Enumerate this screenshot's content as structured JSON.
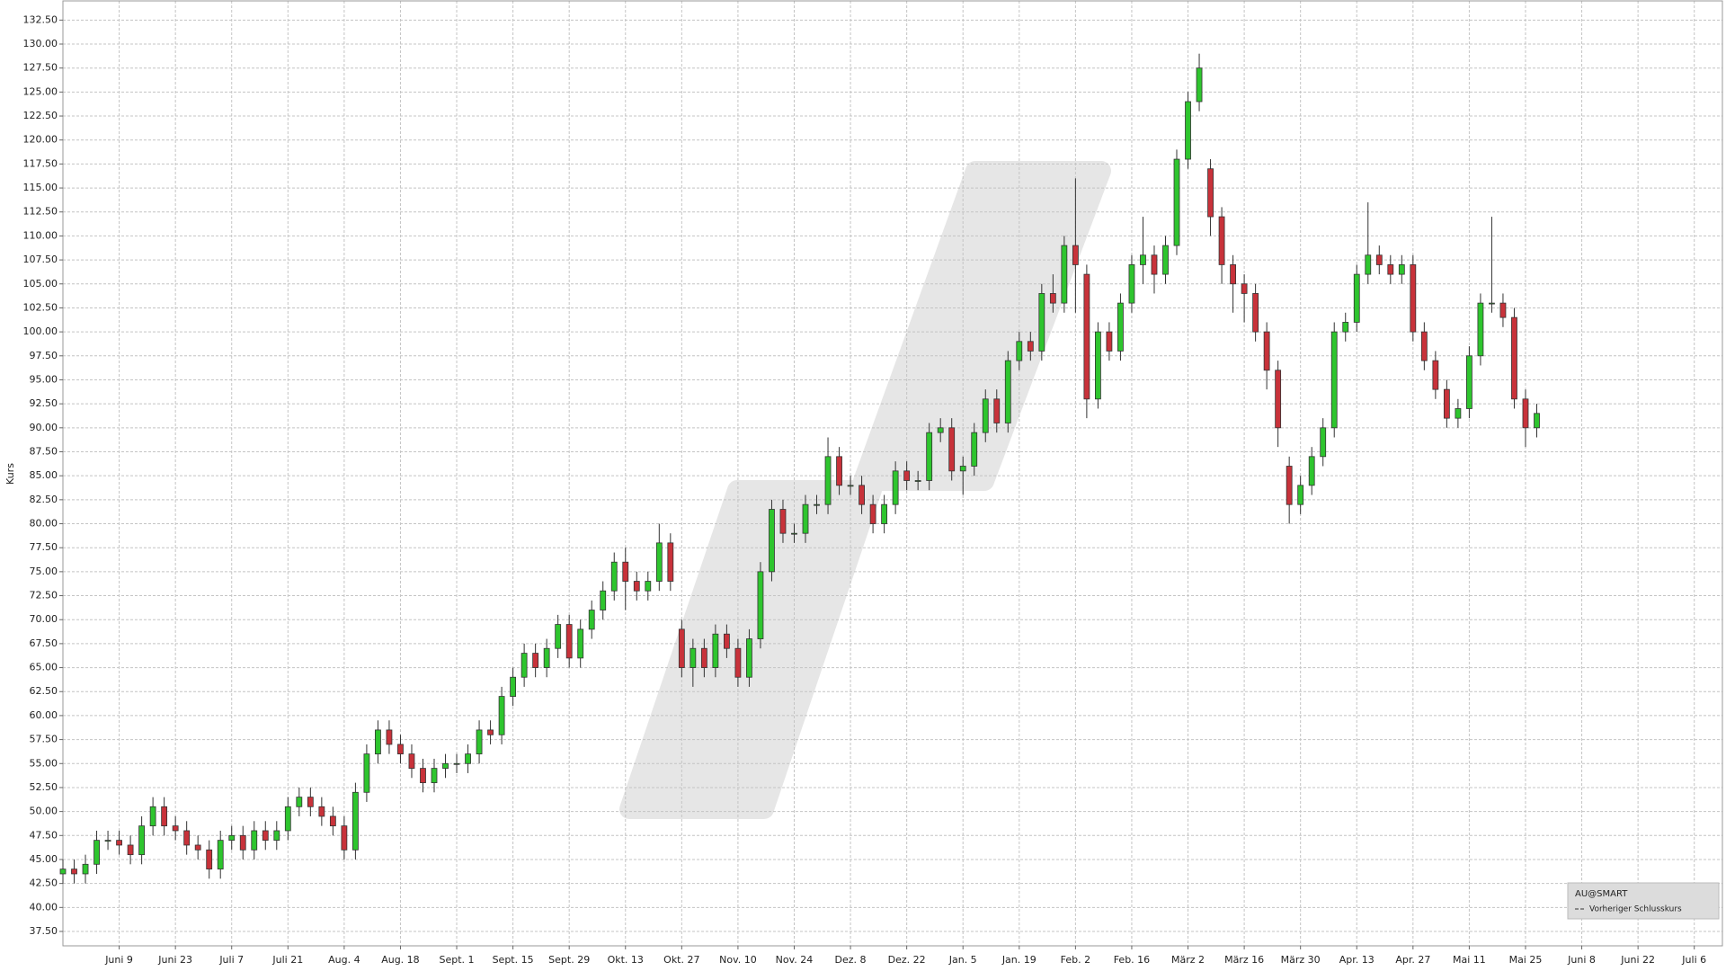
{
  "chart_data": {
    "type": "candlestick",
    "ylabel": "Kurs",
    "up_color": "#2ec52e",
    "down_color": "#c8323a",
    "grid": true,
    "legend": {
      "symbol": "AU@SMART",
      "items": [
        "Vorheriger Schlusskurs"
      ],
      "position": "lower right"
    },
    "xlim": [
      0,
      295
    ],
    "ylim": [
      36,
      134.5
    ],
    "xticks": [
      {
        "value": 10,
        "label": "Juni 9"
      },
      {
        "value": 20,
        "label": "Juni 23"
      },
      {
        "value": 30,
        "label": "Juli 7"
      },
      {
        "value": 40,
        "label": "Juli 21"
      },
      {
        "value": 50,
        "label": "Aug. 4"
      },
      {
        "value": 60,
        "label": "Aug. 18"
      },
      {
        "value": 70,
        "label": "Sept. 1"
      },
      {
        "value": 80,
        "label": "Sept. 15"
      },
      {
        "value": 90,
        "label": "Sept. 29"
      },
      {
        "value": 100,
        "label": "Okt. 13"
      },
      {
        "value": 110,
        "label": "Okt. 27"
      },
      {
        "value": 120,
        "label": "Nov. 10"
      },
      {
        "value": 130,
        "label": "Nov. 24"
      },
      {
        "value": 140,
        "label": "Dez. 8"
      },
      {
        "value": 150,
        "label": "Dez. 22"
      },
      {
        "value": 160,
        "label": "Jan. 5"
      },
      {
        "value": 170,
        "label": "Jan. 19"
      },
      {
        "value": 180,
        "label": "Feb. 2"
      },
      {
        "value": 190,
        "label": "Feb. 16"
      },
      {
        "value": 200,
        "label": "März 2"
      },
      {
        "value": 210,
        "label": "März 16"
      },
      {
        "value": 220,
        "label": "März 30"
      },
      {
        "value": 230,
        "label": "Apr. 13"
      },
      {
        "value": 240,
        "label": "Apr. 27"
      },
      {
        "value": 250,
        "label": "Mai 11"
      },
      {
        "value": 260,
        "label": "Mai 25"
      },
      {
        "value": 270,
        "label": "Juni 8"
      },
      {
        "value": 280,
        "label": "Juni 22"
      },
      {
        "value": 290,
        "label": "Juli 6"
      }
    ],
    "yticks": [
      {
        "value": 37.5,
        "label": "37.50"
      },
      {
        "value": 40,
        "label": "40.00"
      },
      {
        "value": 42.5,
        "label": "42.50"
      },
      {
        "value": 45,
        "label": "45.00"
      },
      {
        "value": 47.5,
        "label": "47.50"
      },
      {
        "value": 50,
        "label": "50.00"
      },
      {
        "value": 52.5,
        "label": "52.50"
      },
      {
        "value": 55,
        "label": "55.00"
      },
      {
        "value": 57.5,
        "label": "57.50"
      },
      {
        "value": 60,
        "label": "60.00"
      },
      {
        "value": 62.5,
        "label": "62.50"
      },
      {
        "value": 65,
        "label": "65.00"
      },
      {
        "value": 67.5,
        "label": "67.50"
      },
      {
        "value": 70,
        "label": "70.00"
      },
      {
        "value": 72.5,
        "label": "72.50"
      },
      {
        "value": 75,
        "label": "75.00"
      },
      {
        "value": 77.5,
        "label": "77.50"
      },
      {
        "value": 80,
        "label": "80.00"
      },
      {
        "value": 82.5,
        "label": "82.50"
      },
      {
        "value": 85,
        "label": "85.00"
      },
      {
        "value": 87.5,
        "label": "87.50"
      },
      {
        "value": 90,
        "label": "90.00"
      },
      {
        "value": 92.5,
        "label": "92.50"
      },
      {
        "value": 95,
        "label": "95.00"
      },
      {
        "value": 97.5,
        "label": "97.50"
      },
      {
        "value": 100,
        "label": "100.00"
      },
      {
        "value": 102.5,
        "label": "102.50"
      },
      {
        "value": 105,
        "label": "105.00"
      },
      {
        "value": 107.5,
        "label": "107.50"
      },
      {
        "value": 110,
        "label": "110.00"
      },
      {
        "value": 112.5,
        "label": "112.50"
      },
      {
        "value": 115,
        "label": "115.00"
      },
      {
        "value": 117.5,
        "label": "117.50"
      },
      {
        "value": 120,
        "label": "120.00"
      },
      {
        "value": 122.5,
        "label": "122.50"
      },
      {
        "value": 125,
        "label": "125.00"
      },
      {
        "value": 127.5,
        "label": "127.50"
      },
      {
        "value": 130,
        "label": "130.00"
      },
      {
        "value": 132.5,
        "label": "132.50"
      }
    ],
    "x": [
      0,
      2,
      4,
      6,
      8,
      10,
      12,
      14,
      16,
      18,
      20,
      22,
      24,
      26,
      28,
      30,
      32,
      34,
      36,
      38,
      40,
      42,
      44,
      46,
      48,
      50,
      52,
      54,
      56,
      58,
      60,
      62,
      64,
      66,
      68,
      70,
      72,
      74,
      76,
      78,
      80,
      82,
      84,
      86,
      88,
      90,
      92,
      94,
      96,
      98,
      100,
      102,
      104,
      106,
      108,
      110,
      112,
      114,
      116,
      118,
      120,
      122,
      124,
      126,
      128,
      130,
      132,
      134,
      136,
      138,
      140,
      142,
      144,
      146,
      148,
      150,
      152,
      154,
      156,
      158,
      160,
      162,
      164,
      166,
      168,
      170,
      172,
      174,
      176,
      178,
      180,
      182,
      184,
      186,
      188,
      190,
      192,
      194,
      196,
      198,
      200,
      202,
      204,
      206,
      208,
      210,
      212,
      214,
      216,
      218,
      220,
      222,
      224,
      226,
      228,
      230,
      232,
      234,
      236,
      238,
      240,
      242,
      244,
      246,
      248,
      250,
      252,
      254,
      256,
      258,
      260,
      262
    ],
    "open": [
      43.5,
      44,
      43.5,
      44.5,
      47,
      47,
      46.5,
      45.5,
      48.5,
      50.5,
      48.5,
      48,
      46.5,
      46,
      44,
      47,
      47.5,
      46,
      48,
      47,
      48,
      50.5,
      51.5,
      50.5,
      49.5,
      48.5,
      46,
      52,
      56,
      58.5,
      57,
      56,
      54.5,
      53,
      54.5,
      55,
      55,
      56,
      58.5,
      58,
      62,
      64,
      66.5,
      65,
      67,
      69.5,
      66,
      69,
      71,
      73,
      76,
      74,
      73,
      74,
      78,
      69,
      65,
      67,
      65,
      68.5,
      67,
      64,
      68,
      75,
      81.5,
      79,
      79,
      82,
      82,
      87,
      84,
      84,
      82,
      80,
      82,
      85.5,
      84.5,
      84.5,
      89.5,
      90,
      85.5,
      86,
      89.5,
      93,
      90.5,
      97,
      99,
      98,
      104,
      103,
      109,
      106,
      93,
      100,
      98,
      103,
      107,
      108,
      106,
      109,
      118,
      124,
      117,
      112,
      107,
      105,
      104,
      100,
      96,
      86,
      82,
      84,
      87,
      90,
      100,
      101,
      106,
      108,
      107,
      106,
      107,
      100,
      97,
      94,
      91,
      92,
      97.5,
      103,
      103,
      101.5,
      93,
      90
    ],
    "high": [
      45,
      45,
      45.5,
      48,
      48,
      48,
      47.5,
      49.5,
      51.5,
      51.5,
      49.5,
      49,
      47.5,
      47,
      48,
      48.5,
      48.5,
      49,
      49,
      49,
      51.5,
      52.5,
      52.5,
      51.5,
      50.5,
      49.5,
      53,
      57,
      59.5,
      59.5,
      58,
      57,
      55.5,
      55.5,
      56,
      56,
      57,
      59.5,
      59.5,
      63,
      65,
      67.5,
      67.5,
      68,
      70.5,
      70.5,
      70,
      72,
      74,
      77,
      77.5,
      75,
      75,
      80,
      79,
      70,
      68,
      68,
      69.5,
      69.5,
      68,
      69,
      76,
      82.5,
      82.5,
      80,
      83,
      83,
      89,
      88,
      85,
      85,
      83,
      83,
      86.5,
      86.5,
      85.5,
      90.5,
      91,
      91,
      87,
      90.5,
      94,
      94,
      98,
      100,
      100,
      105,
      106,
      110,
      116,
      107,
      101,
      101,
      104,
      108,
      112,
      109,
      110,
      119,
      125,
      129,
      118,
      113,
      108,
      106,
      105,
      101,
      97,
      87,
      85,
      88,
      91,
      101,
      102,
      107,
      113.5,
      109,
      108,
      108,
      108,
      101,
      98,
      95,
      93,
      98.5,
      104,
      112,
      104,
      102.5,
      94,
      92.5
    ],
    "low": [
      42.5,
      42.5,
      42.5,
      43.5,
      46,
      45.5,
      44.5,
      44.5,
      47.5,
      47.5,
      47,
      45.5,
      45,
      43,
      43,
      46,
      45,
      45,
      46,
      46,
      47,
      49.5,
      49.5,
      48.5,
      47.5,
      45,
      45,
      51,
      55,
      56,
      55,
      53.5,
      52,
      52,
      53.5,
      54,
      54,
      55,
      57,
      57,
      61,
      63,
      64,
      64,
      66,
      65,
      65,
      68,
      70,
      72,
      71,
      72,
      72,
      73,
      73,
      64,
      63,
      64,
      64,
      66,
      63,
      63,
      67,
      74,
      78,
      78,
      78,
      81,
      81,
      83,
      83,
      81,
      79,
      79,
      81,
      83.5,
      83.5,
      83.5,
      88.5,
      84.5,
      83,
      85,
      88.5,
      89.5,
      89.5,
      96,
      97,
      97,
      102,
      102,
      102,
      91,
      92,
      97,
      97,
      102,
      105,
      104,
      105,
      108,
      117,
      123,
      110,
      105,
      102,
      101,
      99,
      94,
      88,
      80,
      81,
      83,
      86,
      89,
      99,
      100,
      105,
      106,
      105,
      105,
      99,
      96,
      93,
      90,
      90,
      91,
      96.5,
      102,
      100.5,
      92,
      88,
      89
    ],
    "close": [
      44,
      43.5,
      44.5,
      47,
      47,
      46.5,
      45.5,
      48.5,
      50.5,
      48.5,
      48,
      46.5,
      46,
      44,
      47,
      47.5,
      46,
      48,
      47,
      48,
      50.5,
      51.5,
      50.5,
      49.5,
      48.5,
      46,
      52,
      56,
      58.5,
      57,
      56,
      54.5,
      53,
      54.5,
      55,
      55,
      56,
      58.5,
      58,
      62,
      64,
      66.5,
      65,
      67,
      69.5,
      66,
      69,
      71,
      73,
      76,
      74,
      73,
      74,
      78,
      74,
      65,
      67,
      65,
      68.5,
      67,
      64,
      68,
      75,
      81.5,
      79,
      79,
      82,
      82,
      87,
      84,
      84,
      82,
      80,
      82,
      85.5,
      84.5,
      84.5,
      89.5,
      90,
      85.5,
      86,
      89.5,
      93,
      90.5,
      97,
      99,
      98,
      104,
      103,
      109,
      107,
      93,
      100,
      98,
      103,
      107,
      108,
      106,
      109,
      118,
      124,
      127.5,
      112,
      107,
      105,
      104,
      100,
      96,
      90,
      82,
      84,
      87,
      90,
      100,
      101,
      106,
      108,
      107,
      106,
      107,
      100,
      97,
      94,
      91,
      92,
      97.5,
      103,
      103,
      101.5,
      93,
      90,
      91.5
    ]
  }
}
